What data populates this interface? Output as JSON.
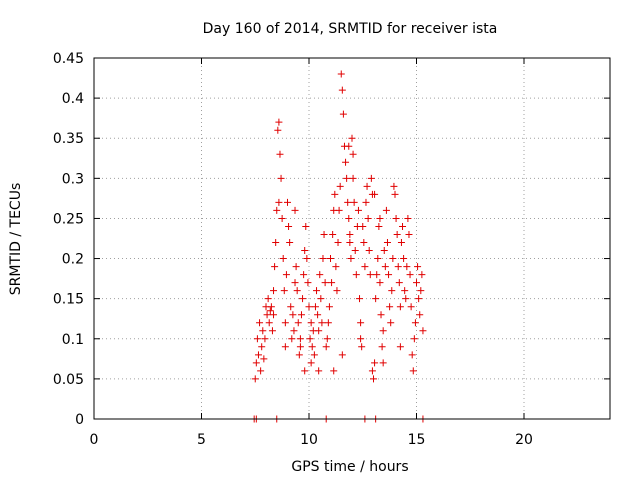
{
  "colors": {
    "series": "#e00000",
    "frame": "#000000",
    "grid": "#a0a0a0"
  },
  "chart_data": {
    "type": "scatter",
    "title": "Day 160 of 2014, SRMTID for receiver ista",
    "xlabel": "GPS time / hours",
    "ylabel": "SRMTID / TECUs",
    "xlim": [
      0,
      24
    ],
    "ylim": [
      0,
      0.45
    ],
    "xticks": [
      0,
      5,
      10,
      15,
      20
    ],
    "yticks": [
      0,
      0.05,
      0.1,
      0.15,
      0.2,
      0.25,
      0.3,
      0.35,
      0.4,
      0.45
    ],
    "grid": true,
    "marker": "+",
    "series": [
      {
        "name": "SRMTID",
        "points": [
          [
            7.45,
            0.0
          ],
          [
            7.55,
            0.0
          ],
          [
            8.5,
            0.0
          ],
          [
            10.8,
            0.0
          ],
          [
            12.6,
            0.0
          ],
          [
            13.1,
            0.0
          ],
          [
            15.3,
            0.0
          ],
          [
            7.5,
            0.05
          ],
          [
            7.55,
            0.07
          ],
          [
            7.6,
            0.1
          ],
          [
            7.65,
            0.08
          ],
          [
            7.7,
            0.12
          ],
          [
            7.75,
            0.06
          ],
          [
            7.8,
            0.09
          ],
          [
            7.85,
            0.11
          ],
          [
            7.9,
            0.075
          ],
          [
            7.95,
            0.1
          ],
          [
            8.0,
            0.14
          ],
          [
            8.05,
            0.13
          ],
          [
            8.1,
            0.15
          ],
          [
            8.15,
            0.12
          ],
          [
            8.2,
            0.135
          ],
          [
            8.25,
            0.14
          ],
          [
            8.3,
            0.11
          ],
          [
            8.35,
            0.16
          ],
          [
            8.4,
            0.19
          ],
          [
            8.45,
            0.22
          ],
          [
            8.5,
            0.26
          ],
          [
            8.55,
            0.36
          ],
          [
            8.6,
            0.37
          ],
          [
            8.65,
            0.33
          ],
          [
            8.7,
            0.3
          ],
          [
            8.75,
            0.25
          ],
          [
            8.8,
            0.2
          ],
          [
            8.85,
            0.16
          ],
          [
            8.9,
            0.12
          ],
          [
            8.95,
            0.18
          ],
          [
            9.0,
            0.27
          ],
          [
            9.05,
            0.24
          ],
          [
            9.1,
            0.22
          ],
          [
            9.15,
            0.14
          ],
          [
            9.2,
            0.1
          ],
          [
            9.25,
            0.13
          ],
          [
            9.3,
            0.11
          ],
          [
            9.35,
            0.17
          ],
          [
            9.4,
            0.19
          ],
          [
            9.45,
            0.16
          ],
          [
            9.5,
            0.12
          ],
          [
            9.55,
            0.08
          ],
          [
            9.6,
            0.1
          ],
          [
            9.65,
            0.13
          ],
          [
            9.7,
            0.15
          ],
          [
            9.75,
            0.18
          ],
          [
            9.8,
            0.21
          ],
          [
            9.85,
            0.24
          ],
          [
            9.9,
            0.2
          ],
          [
            9.95,
            0.17
          ],
          [
            10.0,
            0.14
          ],
          [
            10.05,
            0.1
          ],
          [
            10.1,
            0.12
          ],
          [
            10.15,
            0.09
          ],
          [
            10.2,
            0.11
          ],
          [
            10.25,
            0.08
          ],
          [
            10.3,
            0.14
          ],
          [
            10.35,
            0.16
          ],
          [
            10.4,
            0.13
          ],
          [
            10.45,
            0.11
          ],
          [
            10.5,
            0.18
          ],
          [
            10.55,
            0.15
          ],
          [
            10.6,
            0.12
          ],
          [
            10.65,
            0.2
          ],
          [
            10.7,
            0.23
          ],
          [
            10.75,
            0.17
          ],
          [
            10.8,
            0.09
          ],
          [
            10.85,
            0.1
          ],
          [
            10.9,
            0.12
          ],
          [
            10.95,
            0.14
          ],
          [
            11.0,
            0.2
          ],
          [
            11.05,
            0.17
          ],
          [
            11.1,
            0.23
          ],
          [
            11.15,
            0.26
          ],
          [
            11.2,
            0.28
          ],
          [
            11.25,
            0.19
          ],
          [
            11.3,
            0.16
          ],
          [
            11.35,
            0.22
          ],
          [
            11.4,
            0.26
          ],
          [
            11.45,
            0.29
          ],
          [
            11.5,
            0.43
          ],
          [
            11.55,
            0.41
          ],
          [
            11.6,
            0.38
          ],
          [
            11.65,
            0.34
          ],
          [
            11.7,
            0.32
          ],
          [
            11.75,
            0.3
          ],
          [
            11.8,
            0.27
          ],
          [
            11.85,
            0.25
          ],
          [
            11.9,
            0.22
          ],
          [
            11.95,
            0.2
          ],
          [
            12.0,
            0.35
          ],
          [
            12.05,
            0.3
          ],
          [
            12.1,
            0.27
          ],
          [
            12.15,
            0.21
          ],
          [
            12.2,
            0.18
          ],
          [
            12.25,
            0.24
          ],
          [
            12.3,
            0.26
          ],
          [
            12.35,
            0.15
          ],
          [
            12.4,
            0.12
          ],
          [
            12.45,
            0.09
          ],
          [
            12.5,
            0.24
          ],
          [
            12.55,
            0.22
          ],
          [
            12.6,
            0.19
          ],
          [
            12.65,
            0.27
          ],
          [
            12.7,
            0.29
          ],
          [
            12.75,
            0.25
          ],
          [
            12.8,
            0.21
          ],
          [
            12.85,
            0.18
          ],
          [
            12.9,
            0.3
          ],
          [
            12.95,
            0.28
          ],
          [
            13.0,
            0.05
          ],
          [
            13.05,
            0.07
          ],
          [
            13.1,
            0.15
          ],
          [
            13.15,
            0.18
          ],
          [
            13.2,
            0.2
          ],
          [
            13.25,
            0.24
          ],
          [
            13.3,
            0.17
          ],
          [
            13.35,
            0.13
          ],
          [
            13.4,
            0.09
          ],
          [
            13.45,
            0.11
          ],
          [
            13.5,
            0.21
          ],
          [
            13.55,
            0.19
          ],
          [
            13.6,
            0.26
          ],
          [
            13.65,
            0.22
          ],
          [
            13.7,
            0.18
          ],
          [
            13.75,
            0.14
          ],
          [
            13.8,
            0.12
          ],
          [
            13.85,
            0.16
          ],
          [
            13.9,
            0.2
          ],
          [
            13.95,
            0.29
          ],
          [
            14.0,
            0.28
          ],
          [
            14.05,
            0.25
          ],
          [
            14.1,
            0.23
          ],
          [
            14.15,
            0.19
          ],
          [
            14.2,
            0.17
          ],
          [
            14.25,
            0.14
          ],
          [
            14.3,
            0.22
          ],
          [
            14.35,
            0.24
          ],
          [
            14.4,
            0.2
          ],
          [
            14.45,
            0.16
          ],
          [
            14.5,
            0.15
          ],
          [
            14.55,
            0.19
          ],
          [
            14.6,
            0.25
          ],
          [
            14.65,
            0.23
          ],
          [
            14.7,
            0.18
          ],
          [
            14.75,
            0.14
          ],
          [
            14.8,
            0.08
          ],
          [
            14.85,
            0.06
          ],
          [
            14.9,
            0.1
          ],
          [
            14.95,
            0.12
          ],
          [
            15.0,
            0.17
          ],
          [
            15.05,
            0.19
          ],
          [
            15.1,
            0.15
          ],
          [
            15.15,
            0.13
          ],
          [
            15.2,
            0.16
          ],
          [
            15.25,
            0.18
          ],
          [
            15.3,
            0.11
          ],
          [
            8.6,
            0.27
          ],
          [
            9.35,
            0.26
          ],
          [
            9.8,
            0.06
          ],
          [
            10.1,
            0.07
          ],
          [
            11.55,
            0.08
          ],
          [
            11.9,
            0.23
          ],
          [
            12.4,
            0.1
          ],
          [
            12.95,
            0.06
          ],
          [
            13.45,
            0.07
          ],
          [
            14.25,
            0.09
          ],
          [
            11.85,
            0.34
          ],
          [
            12.05,
            0.33
          ],
          [
            13.05,
            0.28
          ],
          [
            13.3,
            0.25
          ],
          [
            8.35,
            0.13
          ],
          [
            8.9,
            0.09
          ],
          [
            9.6,
            0.09
          ],
          [
            10.45,
            0.06
          ],
          [
            11.15,
            0.06
          ]
        ]
      }
    ]
  }
}
